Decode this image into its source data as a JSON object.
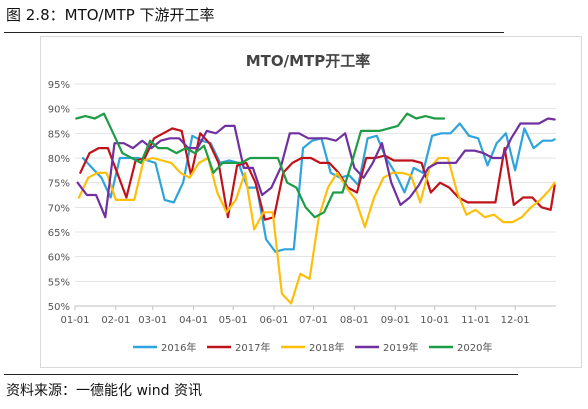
{
  "figure": {
    "caption": "图 2.8：MTO/MTP 下游开工率",
    "source": "资料来源：一德能化  wind 资讯"
  },
  "chart_data": {
    "type": "line",
    "title": "MTO/MTP开工率",
    "xlabel": "",
    "ylabel": "",
    "x_axis_type": "day_of_year",
    "x_tick_labels": [
      "01-01",
      "02-01",
      "03-01",
      "04-01",
      "05-01",
      "06-01",
      "07-01",
      "08-01",
      "09-01",
      "10-01",
      "11-01",
      "12-01"
    ],
    "y_tick_labels": [
      "50%",
      "55%",
      "60%",
      "65%",
      "70%",
      "75%",
      "80%",
      "85%",
      "90%",
      "95%"
    ],
    "ylim": [
      50,
      95
    ],
    "grid": true,
    "legend_position": "bottom",
    "series": [
      {
        "name": "2016年",
        "color": "#2ea3dc",
        "points": [
          [
            "01-07",
            80
          ],
          [
            "01-14",
            78
          ],
          [
            "01-21",
            76
          ],
          [
            "01-28",
            72
          ],
          [
            "02-04",
            80
          ],
          [
            "02-11",
            80
          ],
          [
            "02-18",
            80
          ],
          [
            "02-25",
            79.5
          ],
          [
            "03-03",
            79
          ],
          [
            "03-10",
            71.5
          ],
          [
            "03-17",
            71
          ],
          [
            "03-24",
            75
          ],
          [
            "03-31",
            84.5
          ],
          [
            "04-07",
            83.5
          ],
          [
            "04-14",
            83
          ],
          [
            "04-21",
            79
          ],
          [
            "04-28",
            79.5
          ],
          [
            "05-05",
            79
          ],
          [
            "05-12",
            74
          ],
          [
            "05-19",
            74
          ],
          [
            "05-26",
            63.5
          ],
          [
            "06-02",
            61
          ],
          [
            "06-09",
            61.5
          ],
          [
            "06-16",
            61.5
          ],
          [
            "06-23",
            82
          ],
          [
            "06-30",
            83.5
          ],
          [
            "07-07",
            84
          ],
          [
            "07-14",
            77
          ],
          [
            "07-21",
            76
          ],
          [
            "07-28",
            76.5
          ],
          [
            "08-04",
            74.5
          ],
          [
            "08-11",
            84
          ],
          [
            "08-18",
            84.5
          ],
          [
            "08-25",
            80
          ],
          [
            "09-01",
            77
          ],
          [
            "09-08",
            73
          ],
          [
            "09-15",
            78
          ],
          [
            "09-22",
            77
          ],
          [
            "09-29",
            84.5
          ],
          [
            "10-06",
            85
          ],
          [
            "10-13",
            85
          ],
          [
            "10-20",
            87
          ],
          [
            "10-27",
            84.5
          ],
          [
            "11-03",
            84
          ],
          [
            "11-10",
            78.5
          ],
          [
            "11-17",
            83
          ],
          [
            "11-24",
            85
          ],
          [
            "12-01",
            77.5
          ],
          [
            "12-08",
            86
          ],
          [
            "12-15",
            82
          ],
          [
            "12-22",
            83.5
          ],
          [
            "12-29",
            83.5
          ],
          [
            "12-31",
            83.8
          ]
        ]
      },
      {
        "name": "2017年",
        "color": "#c0121b",
        "points": [
          [
            "01-05",
            77
          ],
          [
            "01-12",
            81
          ],
          [
            "01-19",
            82
          ],
          [
            "01-26",
            82
          ],
          [
            "02-02",
            77
          ],
          [
            "02-09",
            72
          ],
          [
            "02-16",
            79.5
          ],
          [
            "02-23",
            80
          ],
          [
            "03-02",
            84
          ],
          [
            "03-09",
            85
          ],
          [
            "03-16",
            86
          ],
          [
            "03-23",
            85.5
          ],
          [
            "03-30",
            76.5
          ],
          [
            "04-06",
            85
          ],
          [
            "04-13",
            83
          ],
          [
            "04-20",
            79
          ],
          [
            "04-27",
            68
          ],
          [
            "05-04",
            78.5
          ],
          [
            "05-11",
            79
          ],
          [
            "05-18",
            75
          ],
          [
            "05-25",
            67.5
          ],
          [
            "06-01",
            68
          ],
          [
            "06-08",
            77
          ],
          [
            "06-15",
            79
          ],
          [
            "06-22",
            80
          ],
          [
            "06-29",
            80
          ],
          [
            "07-06",
            79
          ],
          [
            "07-13",
            79
          ],
          [
            "07-20",
            77
          ],
          [
            "07-27",
            74
          ],
          [
            "08-03",
            73
          ],
          [
            "08-10",
            80
          ],
          [
            "08-17",
            80
          ],
          [
            "08-24",
            80.5
          ],
          [
            "08-31",
            79.5
          ],
          [
            "09-07",
            79.5
          ],
          [
            "09-14",
            79.5
          ],
          [
            "09-21",
            79
          ],
          [
            "09-28",
            73
          ],
          [
            "10-05",
            75
          ],
          [
            "10-12",
            74
          ],
          [
            "10-19",
            72
          ],
          [
            "10-26",
            71
          ],
          [
            "11-02",
            71
          ],
          [
            "11-09",
            71
          ],
          [
            "11-16",
            71
          ],
          [
            "11-23",
            82
          ],
          [
            "11-30",
            70.5
          ],
          [
            "12-07",
            72
          ],
          [
            "12-14",
            72
          ],
          [
            "12-21",
            70
          ],
          [
            "12-28",
            69.5
          ],
          [
            "12-31",
            74.5
          ]
        ]
      },
      {
        "name": "2018年",
        "color": "#fdbf0b",
        "points": [
          [
            "01-04",
            72
          ],
          [
            "01-11",
            76
          ],
          [
            "01-18",
            77
          ],
          [
            "01-25",
            77
          ],
          [
            "02-01",
            71.5
          ],
          [
            "02-08",
            71.5
          ],
          [
            "02-15",
            71.5
          ],
          [
            "02-22",
            79.5
          ],
          [
            "03-01",
            80
          ],
          [
            "03-08",
            79.5
          ],
          [
            "03-15",
            79
          ],
          [
            "03-22",
            77
          ],
          [
            "03-29",
            76
          ],
          [
            "04-05",
            79
          ],
          [
            "04-12",
            80
          ],
          [
            "04-19",
            73
          ],
          [
            "04-26",
            69
          ],
          [
            "05-03",
            71.5
          ],
          [
            "05-10",
            77
          ],
          [
            "05-17",
            65.5
          ],
          [
            "05-24",
            69
          ],
          [
            "05-31",
            69
          ],
          [
            "06-07",
            52.5
          ],
          [
            "06-14",
            50.5
          ],
          [
            "06-21",
            56.5
          ],
          [
            "06-28",
            55.5
          ],
          [
            "07-05",
            68
          ],
          [
            "07-12",
            74
          ],
          [
            "07-19",
            77
          ],
          [
            "07-26",
            74
          ],
          [
            "08-02",
            71.5
          ],
          [
            "08-09",
            66
          ],
          [
            "08-16",
            72
          ],
          [
            "08-23",
            76
          ],
          [
            "08-30",
            77
          ],
          [
            "09-06",
            77
          ],
          [
            "09-13",
            76.5
          ],
          [
            "09-20",
            71
          ],
          [
            "09-27",
            78
          ],
          [
            "10-04",
            80
          ],
          [
            "10-11",
            80
          ],
          [
            "10-18",
            73
          ],
          [
            "10-25",
            68.5
          ],
          [
            "11-01",
            69.5
          ],
          [
            "11-08",
            68
          ],
          [
            "11-15",
            68.5
          ],
          [
            "11-22",
            67
          ],
          [
            "11-29",
            67
          ],
          [
            "12-06",
            68
          ],
          [
            "12-13",
            70
          ],
          [
            "12-20",
            71.5
          ],
          [
            "12-27",
            73.5
          ],
          [
            "12-31",
            75
          ]
        ]
      },
      {
        "name": "2019年",
        "color": "#7030a0",
        "points": [
          [
            "01-03",
            75
          ],
          [
            "01-10",
            72.5
          ],
          [
            "01-17",
            72.5
          ],
          [
            "01-24",
            68
          ],
          [
            "01-31",
            83
          ],
          [
            "02-07",
            83
          ],
          [
            "02-14",
            82
          ],
          [
            "02-21",
            83.5
          ],
          [
            "02-28",
            82
          ],
          [
            "03-07",
            83.5
          ],
          [
            "03-14",
            84
          ],
          [
            "03-21",
            84
          ],
          [
            "03-28",
            82
          ],
          [
            "04-04",
            82
          ],
          [
            "04-11",
            85.5
          ],
          [
            "04-18",
            85
          ],
          [
            "04-25",
            86.5
          ],
          [
            "05-02",
            86.5
          ],
          [
            "05-09",
            78
          ],
          [
            "05-16",
            78
          ],
          [
            "05-23",
            72.5
          ],
          [
            "05-30",
            74
          ],
          [
            "06-06",
            78
          ],
          [
            "06-13",
            85
          ],
          [
            "06-20",
            85
          ],
          [
            "06-27",
            84
          ],
          [
            "07-04",
            84
          ],
          [
            "07-11",
            84
          ],
          [
            "07-18",
            83.5
          ],
          [
            "07-25",
            85
          ],
          [
            "08-01",
            78
          ],
          [
            "08-08",
            76
          ],
          [
            "08-15",
            79
          ],
          [
            "08-22",
            83
          ],
          [
            "08-29",
            75
          ],
          [
            "09-05",
            70.5
          ],
          [
            "09-12",
            72
          ],
          [
            "09-19",
            74.5
          ],
          [
            "09-26",
            78
          ],
          [
            "10-03",
            79
          ],
          [
            "10-10",
            79
          ],
          [
            "10-17",
            79
          ],
          [
            "10-24",
            81.5
          ],
          [
            "10-31",
            81.5
          ],
          [
            "11-07",
            81
          ],
          [
            "11-14",
            80
          ],
          [
            "11-21",
            80
          ],
          [
            "11-28",
            84
          ],
          [
            "12-05",
            87
          ],
          [
            "12-12",
            87
          ],
          [
            "12-19",
            87
          ],
          [
            "12-26",
            88
          ],
          [
            "12-31",
            87.8
          ]
        ]
      },
      {
        "name": "2020年",
        "color": "#1e9c46",
        "points": [
          [
            "01-02",
            88
          ],
          [
            "01-09",
            88.5
          ],
          [
            "01-16",
            88
          ],
          [
            "01-23",
            89
          ],
          [
            "01-30",
            85
          ],
          [
            "02-06",
            81
          ],
          [
            "02-13",
            80
          ],
          [
            "02-20",
            79
          ],
          [
            "02-27",
            83.5
          ],
          [
            "03-05",
            82
          ],
          [
            "03-12",
            82
          ],
          [
            "03-19",
            81
          ],
          [
            "03-26",
            82
          ],
          [
            "04-02",
            81
          ],
          [
            "04-09",
            82.5
          ],
          [
            "04-16",
            77
          ],
          [
            "04-23",
            79
          ],
          [
            "04-30",
            79
          ],
          [
            "05-07",
            79
          ],
          [
            "05-14",
            80
          ],
          [
            "05-21",
            80
          ],
          [
            "05-28",
            80
          ],
          [
            "06-04",
            80
          ],
          [
            "06-11",
            75
          ],
          [
            "06-18",
            74
          ],
          [
            "06-25",
            70
          ],
          [
            "07-02",
            68
          ],
          [
            "07-09",
            69
          ],
          [
            "07-16",
            73
          ],
          [
            "07-23",
            73
          ],
          [
            "07-30",
            79
          ],
          [
            "08-06",
            85.5
          ],
          [
            "08-13",
            85.5
          ],
          [
            "08-20",
            85.5
          ],
          [
            "08-27",
            86
          ],
          [
            "09-03",
            86.5
          ],
          [
            "09-10",
            89
          ],
          [
            "09-17",
            88
          ],
          [
            "09-24",
            88.5
          ],
          [
            "10-01",
            88
          ],
          [
            "10-08",
            88
          ]
        ]
      }
    ]
  }
}
